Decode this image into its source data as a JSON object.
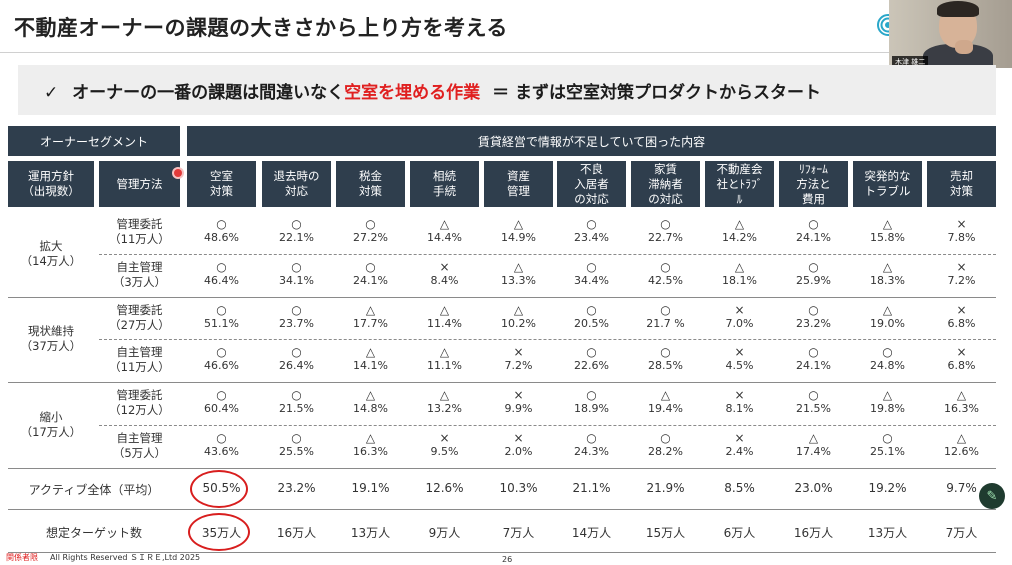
{
  "slide": {
    "title": "不動産オーナーの課題の大きさから上り方を考える",
    "banner": {
      "check": "✓",
      "pre": "オーナーの一番の課題は間違いなく",
      "highlight": "空室を埋める作業",
      "post": "＝ まずは空室対策プロダクトからスタート"
    },
    "video_name": "木津 雄二",
    "accent_color": "#e02020",
    "header_color": "#2f3e4d"
  },
  "table": {
    "segment_header": "オーナーセグメント",
    "content_header": "賃貸経営で情報が不足していて困った内容",
    "policy_header": "運用方針\n（出現数）",
    "method_header": "管理方法",
    "columns": [
      "空室\n対策",
      "退去時の\n対応",
      "税金\n対策",
      "相続\n手続",
      "資産\n管理",
      "不良\n入居者\nの対応",
      "家賃\n滞納者\nの対応",
      "不動産会\n社とﾄﾗﾌﾞ\nﾙ",
      "ﾘﾌｫｰﾑ\n方法と\n費用",
      "突発的な\nトラブル",
      "売却\n対策"
    ],
    "segments": [
      {
        "name": "拡大\n（14万人）",
        "rows": [
          {
            "method": "管理委託\n（11万人）",
            "cells": [
              [
                "○",
                "48.6%"
              ],
              [
                "○",
                "22.1%"
              ],
              [
                "○",
                "27.2%"
              ],
              [
                "△",
                "14.4%"
              ],
              [
                "△",
                "14.9%"
              ],
              [
                "○",
                "23.4%"
              ],
              [
                "○",
                "22.7%"
              ],
              [
                "△",
                "14.2%"
              ],
              [
                "○",
                "24.1%"
              ],
              [
                "△",
                "15.8%"
              ],
              [
                "×",
                "7.8%"
              ]
            ]
          },
          {
            "method": "自主管理\n（3万人）",
            "cells": [
              [
                "○",
                "46.4%"
              ],
              [
                "○",
                "34.1%"
              ],
              [
                "○",
                "24.1%"
              ],
              [
                "×",
                "8.4%"
              ],
              [
                "△",
                "13.3%"
              ],
              [
                "○",
                "34.4%"
              ],
              [
                "○",
                "42.5%"
              ],
              [
                "△",
                "18.1%"
              ],
              [
                "○",
                "25.9%"
              ],
              [
                "△",
                "18.3%"
              ],
              [
                "×",
                "7.2%"
              ]
            ]
          }
        ]
      },
      {
        "name": "現状維持\n（37万人）",
        "rows": [
          {
            "method": "管理委託\n（27万人）",
            "cells": [
              [
                "○",
                "51.1%"
              ],
              [
                "○",
                "23.7%"
              ],
              [
                "△",
                "17.7%"
              ],
              [
                "△",
                "11.4%"
              ],
              [
                "△",
                "10.2%"
              ],
              [
                "○",
                "20.5%"
              ],
              [
                "○",
                "21.7 %"
              ],
              [
                "×",
                "7.0%"
              ],
              [
                "○",
                "23.2%"
              ],
              [
                "△",
                "19.0%"
              ],
              [
                "×",
                "6.8%"
              ]
            ]
          },
          {
            "method": "自主管理\n（11万人）",
            "cells": [
              [
                "○",
                "46.6%"
              ],
              [
                "○",
                "26.4%"
              ],
              [
                "△",
                "14.1%"
              ],
              [
                "△",
                "11.1%"
              ],
              [
                "×",
                "7.2%"
              ],
              [
                "○",
                "22.6%"
              ],
              [
                "○",
                "28.5%"
              ],
              [
                "×",
                "4.5%"
              ],
              [
                "○",
                "24.1%"
              ],
              [
                "○",
                "24.8%"
              ],
              [
                "×",
                "6.8%"
              ]
            ]
          }
        ]
      },
      {
        "name": "縮小\n（17万人）",
        "rows": [
          {
            "method": "管理委託\n（12万人）",
            "cells": [
              [
                "○",
                "60.4%"
              ],
              [
                "○",
                "21.5%"
              ],
              [
                "△",
                "14.8%"
              ],
              [
                "△",
                "13.2%"
              ],
              [
                "×",
                "9.9%"
              ],
              [
                "○",
                "18.9%"
              ],
              [
                "△",
                "19.4%"
              ],
              [
                "×",
                "8.1%"
              ],
              [
                "○",
                "21.5%"
              ],
              [
                "△",
                "19.8%"
              ],
              [
                "△",
                "16.3%"
              ]
            ]
          },
          {
            "method": "自主管理\n（5万人）",
            "cells": [
              [
                "○",
                "43.6%"
              ],
              [
                "○",
                "25.5%"
              ],
              [
                "△",
                "16.3%"
              ],
              [
                "×",
                "9.5%"
              ],
              [
                "×",
                "2.0%"
              ],
              [
                "○",
                "24.3%"
              ],
              [
                "○",
                "28.2%"
              ],
              [
                "×",
                "2.4%"
              ],
              [
                "△",
                "17.4%"
              ],
              [
                "○",
                "25.1%"
              ],
              [
                "△",
                "12.6%"
              ]
            ]
          }
        ]
      }
    ],
    "summary": [
      {
        "label": "アクティブ全体（平均）",
        "values": [
          "50.5%",
          "23.2%",
          "19.1%",
          "12.6%",
          "10.3%",
          "21.1%",
          "21.9%",
          "8.5%",
          "23.0%",
          "19.2%",
          "9.7%"
        ]
      },
      {
        "label": "想定ターゲット数",
        "values": [
          "35万人",
          "16万人",
          "13万人",
          "9万人",
          "7万人",
          "14万人",
          "15万人",
          "6万人",
          "16万人",
          "13万人",
          "7万人"
        ]
      }
    ]
  },
  "footer": {
    "confidential": "関係者限",
    "copyright": "All Rights Reserved ＳＩＲＥ,Ltd 2025",
    "page": "26"
  },
  "icons": {
    "edit": "pencil-icon",
    "logo": "spiral-logo-icon"
  }
}
